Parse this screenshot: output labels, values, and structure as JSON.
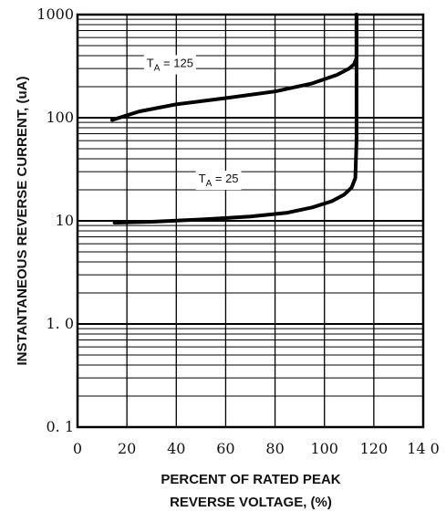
{
  "chart_data": {
    "type": "line",
    "title": "",
    "xlabel_line1": "PERCENT OF RATED PEAK",
    "xlabel_line2": "REVERSE VOLTAGE, (%)",
    "ylabel": "INSTANTANEOUS REVERSE CURRENT, (uA)",
    "y_scale": "log",
    "ylim": [
      0.1,
      1000
    ],
    "xlim": [
      0,
      140
    ],
    "x_ticks": [
      "0",
      "20",
      "40",
      "60",
      "80",
      "100",
      "120",
      "14 0"
    ],
    "y_ticks": [
      "0. 1",
      "1. 0",
      "10",
      "100",
      "1000"
    ],
    "grid": true,
    "series": [
      {
        "label_main": "T",
        "label_sub": "A",
        "label_rest": " = 125",
        "x": [
          14,
          25,
          40,
          60,
          80,
          95,
          105,
          110,
          112,
          113,
          113,
          113
        ],
        "y": [
          95,
          115,
          135,
          155,
          180,
          215,
          260,
          300,
          330,
          380,
          600,
          1000
        ]
      },
      {
        "label_main": "T",
        "label_sub": "A",
        "label_rest": " = 25",
        "x": [
          15,
          30,
          50,
          70,
          85,
          95,
          103,
          108,
          111,
          112.5,
          113,
          113,
          113
        ],
        "y": [
          9.6,
          9.8,
          10.3,
          11,
          12,
          13.5,
          15.5,
          18,
          21,
          26,
          60,
          300,
          1000
        ]
      }
    ]
  }
}
